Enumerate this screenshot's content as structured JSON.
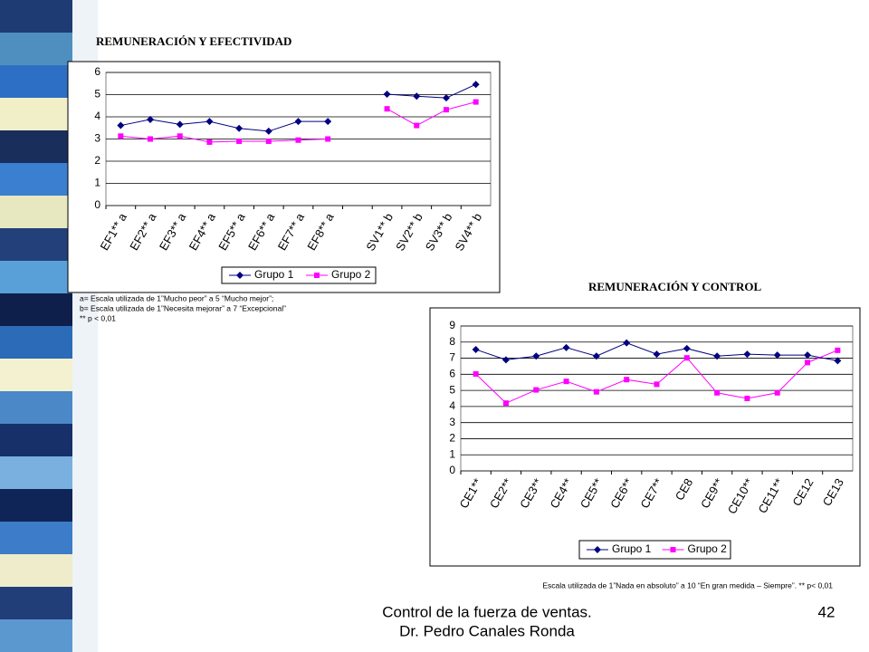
{
  "chart_data": [
    {
      "type": "line",
      "title": "REMUNERACIÓN Y EFECTIVIDAD",
      "categories": [
        "EF1** a",
        "EF2** a",
        "EF3** a",
        "EF4** a",
        "EF5** a",
        "EF6** a",
        "EF7** a",
        "EF8** a",
        null,
        "SV1** b",
        "SV2** b",
        "SV3** b",
        "SV4** b"
      ],
      "series": [
        {
          "name": "Grupo 1",
          "color": "#000080",
          "marker": "diamond",
          "values": [
            3.61,
            3.88,
            3.66,
            3.79,
            3.48,
            3.35,
            3.79,
            3.79,
            null,
            5.02,
            4.93,
            4.85,
            5.46
          ]
        },
        {
          "name": "Grupo 2",
          "color": "#ff00ff",
          "marker": "square",
          "values": [
            3.13,
            3.0,
            3.13,
            2.86,
            2.9,
            2.9,
            2.95,
            3.0,
            null,
            4.36,
            3.61,
            4.32,
            4.67
          ]
        }
      ],
      "ylim": [
        0,
        6
      ],
      "yticks": [
        0,
        1,
        2,
        3,
        4,
        5,
        6
      ],
      "grid": true,
      "legend": "bottom",
      "notes": [
        "a= Escala utilizada de 1”Mucho peor” a 5 “Mucho mejor”;",
        "b=  Escala utilizada de 1”Necesita mejorar” a 7 “Excepcional”",
        "** p < 0,01"
      ]
    },
    {
      "type": "line",
      "title": "REMUNERACIÓN Y CONTROL",
      "categories": [
        "CE1**",
        "CE2**",
        "CE3**",
        "CE4**",
        "CE5**",
        "CE6**",
        "CE7**",
        "CE8",
        "CE9**",
        "CE10**",
        "CE11**",
        "CE12",
        "CE13"
      ],
      "series": [
        {
          "name": "Grupo 1",
          "color": "#000080",
          "marker": "diamond",
          "values": [
            7.54,
            6.9,
            7.13,
            7.66,
            7.13,
            7.95,
            7.25,
            7.6,
            7.13,
            7.25,
            7.19,
            7.19,
            6.84
          ]
        },
        {
          "name": "Grupo 2",
          "color": "#ff00ff",
          "marker": "square",
          "values": [
            6.02,
            4.21,
            5.03,
            5.56,
            4.91,
            5.67,
            5.38,
            7.02,
            4.85,
            4.5,
            4.85,
            6.73,
            7.49
          ]
        }
      ],
      "ylim": [
        0,
        9
      ],
      "yticks": [
        0,
        1,
        2,
        3,
        4,
        5,
        6,
        7,
        8,
        9
      ],
      "grid": true,
      "legend": "bottom",
      "notes": [
        "Escala utilizada de 1”Nada en absoluto” a 10 “En gran medida – Siempre”. ** p< 0,01"
      ]
    }
  ],
  "footer": {
    "lines": [
      "Control de la fuerza de ventas.",
      "Dr. Pedro Canales Ronda"
    ],
    "page": "42"
  }
}
